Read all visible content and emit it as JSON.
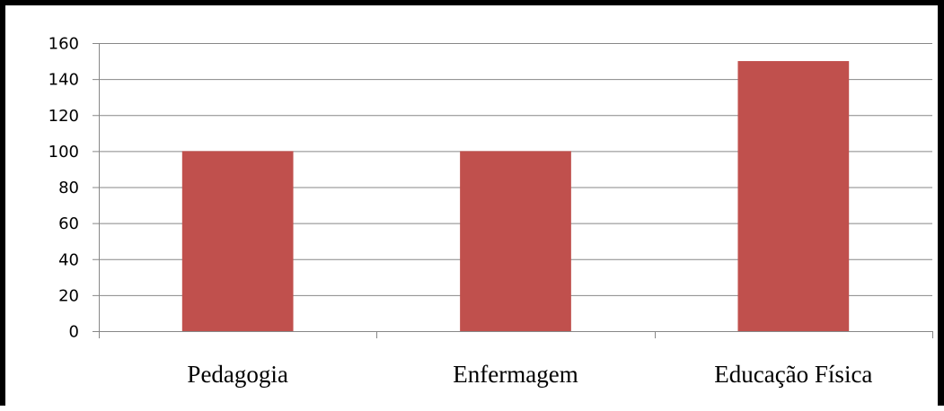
{
  "chart_data": {
    "type": "bar",
    "title": "",
    "xlabel": "",
    "ylabel": "",
    "categories": [
      "Pedagogia",
      "Enfermagem",
      "Educação Física"
    ],
    "values": [
      100,
      100,
      150
    ],
    "ylim": [
      0,
      160
    ],
    "yticks": [
      0,
      20,
      40,
      60,
      80,
      100,
      120,
      140,
      160
    ],
    "grid": "horizontal",
    "legend": "none",
    "colors": {
      "bar": "#c0504d",
      "grid": "#878787",
      "axis": "#878787",
      "border": "#000000"
    }
  }
}
